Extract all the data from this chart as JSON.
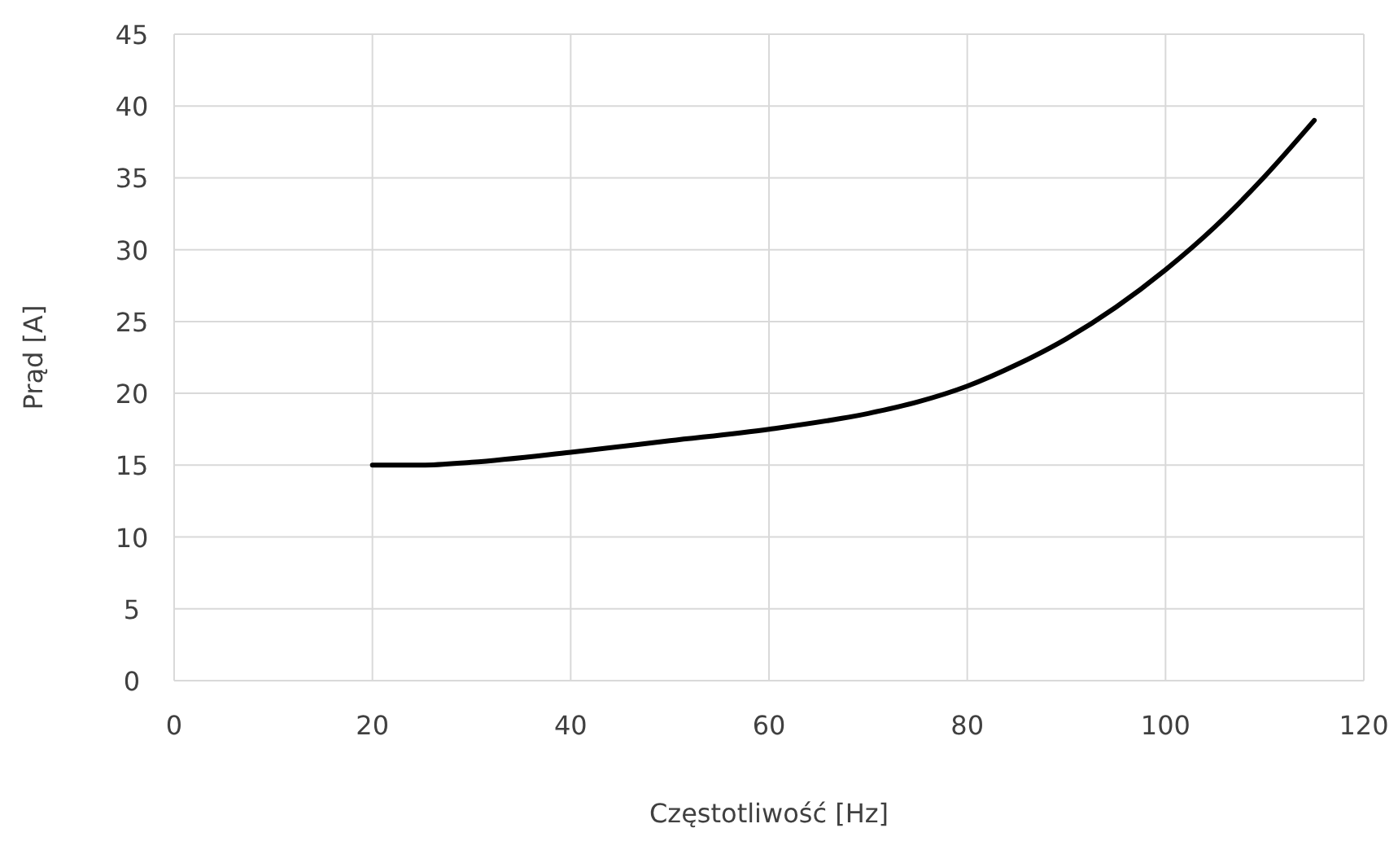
{
  "chart_data": {
    "type": "line",
    "xlabel": "Częstotliwość [Hz]",
    "ylabel": "Prąd [A]",
    "x": [
      20,
      25,
      30,
      40,
      50,
      60,
      70,
      75,
      80,
      85,
      90,
      95,
      100,
      105,
      110,
      115
    ],
    "series": [
      {
        "color": "#000000",
        "values": [
          15,
          15,
          15.2,
          15.9,
          16.7,
          17.5,
          18.6,
          19.4,
          20.5,
          22,
          23.8,
          26,
          28.6,
          31.6,
          35.1,
          39
        ]
      }
    ],
    "xlim": [
      0,
      120
    ],
    "xticks": [
      0,
      20,
      40,
      60,
      80,
      100,
      120
    ],
    "ylim": [
      0,
      45
    ],
    "yticks": [
      0,
      5,
      10,
      15,
      20,
      25,
      30,
      35,
      40,
      45
    ],
    "grid": true,
    "marker": "none",
    "line_style": "solid"
  }
}
